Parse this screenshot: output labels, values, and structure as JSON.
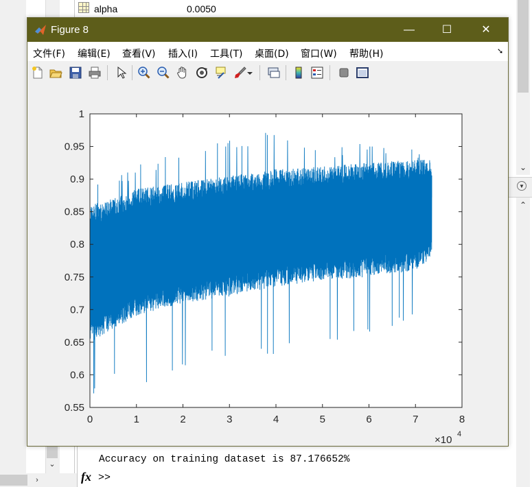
{
  "workspace": {
    "variable_name": "alpha",
    "variable_value": "0.0050"
  },
  "console": {
    "output_line": "Accuracy on training dataset is 87.176652%",
    "fx_label": "fx",
    "prompt": ">>"
  },
  "figure": {
    "title": "Figure 8",
    "window_buttons": {
      "minimize": "—",
      "maximize": "☐",
      "close": "✕"
    },
    "menu": [
      "文件(F)",
      "编辑(E)",
      "查看(V)",
      "插入(I)",
      "工具(T)",
      "桌面(D)",
      "窗口(W)",
      "帮助(H)"
    ],
    "menu_more": "➘",
    "toolbar_icons": [
      "new-figure-icon",
      "open-file-icon",
      "save-icon",
      "print-icon",
      "pointer-icon",
      "zoom-in-icon",
      "zoom-out-icon",
      "pan-hand-icon",
      "rotate-3d-icon",
      "data-cursor-icon",
      "brush-icon",
      "link-plot-icon",
      "colorbar-icon",
      "legend-icon",
      "hide-plot-tools-icon",
      "show-plot-tools-icon"
    ],
    "colors": {
      "titlebar": "#5d5d1a",
      "series": "#0072bd"
    }
  },
  "chart_data": {
    "type": "line",
    "title": "",
    "xlabel": "",
    "ylabel": "",
    "xlim": [
      0,
      8
    ],
    "ylim": [
      0.55,
      1
    ],
    "x_tick_labels": [
      "0",
      "1",
      "2",
      "3",
      "4",
      "5",
      "6",
      "7",
      "8"
    ],
    "y_tick_labels": [
      "0.55",
      "0.6",
      "0.65",
      "0.7",
      "0.75",
      "0.8",
      "0.85",
      "0.9",
      "0.95",
      "1"
    ],
    "x_exponent_label": "×10",
    "x_exponent_power": "4",
    "grid": false,
    "series": [
      {
        "color": "#0072bd",
        "x_range": [
          0,
          73500
        ],
        "x_scale_factor": 10000,
        "envelope": {
          "x": [
            0,
            5000,
            10000,
            20000,
            30000,
            40000,
            50000,
            60000,
            70000,
            73500
          ],
          "upper": [
            0.86,
            0.87,
            0.885,
            0.895,
            0.905,
            0.915,
            0.92,
            0.925,
            0.93,
            0.93
          ],
          "lower": [
            0.65,
            0.67,
            0.69,
            0.71,
            0.72,
            0.735,
            0.745,
            0.75,
            0.76,
            0.78
          ],
          "max_spike": [
            0.89,
            0.91,
            0.92,
            0.95,
            0.96,
            0.98,
            0.95,
            0.96,
            0.95,
            0.95
          ],
          "min_spike": [
            0.56,
            0.6,
            0.58,
            0.61,
            0.63,
            0.63,
            0.64,
            0.66,
            0.69,
            0.75
          ]
        },
        "final_value": 0.8718
      }
    ]
  }
}
